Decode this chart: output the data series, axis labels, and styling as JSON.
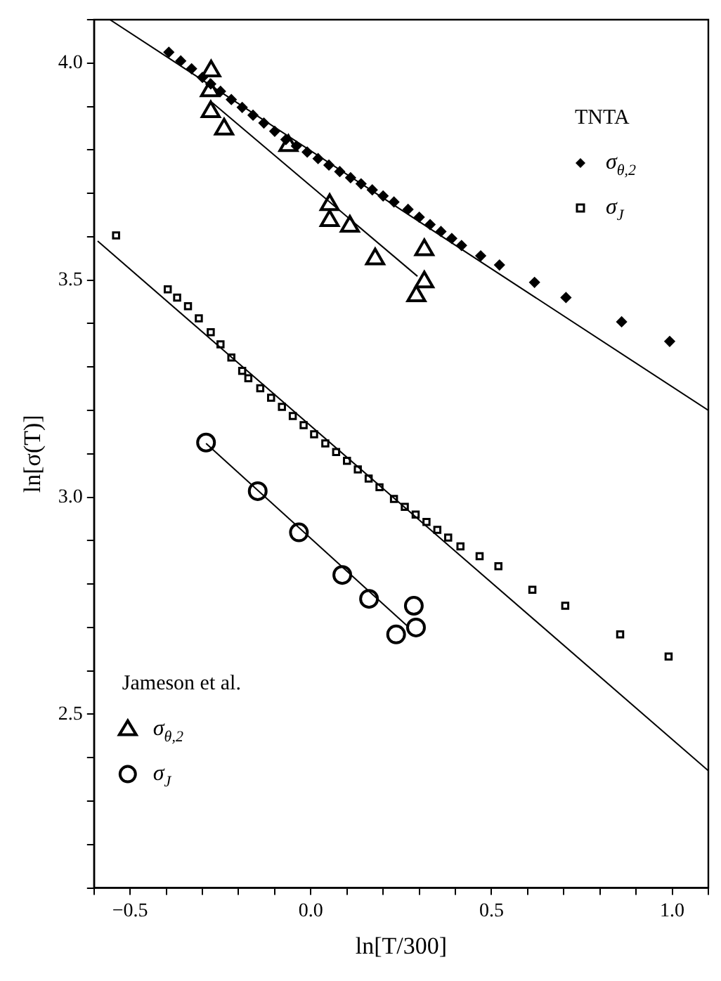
{
  "chart_data": {
    "type": "scatter",
    "xlabel": "ln[T/300]",
    "ylabel": "ln[σ(T)]",
    "xlim": [
      -0.6,
      1.1
    ],
    "ylim": [
      2.1,
      4.1
    ],
    "xticks": [
      {
        "value": -0.6,
        "label": null
      },
      -0.5,
      {
        "value": -0.4,
        "label": null
      },
      {
        "value": -0.3,
        "label": null
      },
      {
        "value": -0.2,
        "label": null
      },
      {
        "value": -0.1,
        "label": null
      },
      {
        "value": 0,
        "label": "0.0"
      },
      {
        "value": 0.1,
        "label": null
      },
      {
        "value": 0.2,
        "label": null
      },
      {
        "value": 0.3,
        "label": null
      },
      {
        "value": 0.4,
        "label": null
      },
      0.5,
      {
        "value": 0.6,
        "label": null
      },
      {
        "value": 0.7,
        "label": null
      },
      {
        "value": 0.8,
        "label": null
      },
      {
        "value": 0.9,
        "label": null
      },
      {
        "value": 1,
        "label": "1.0"
      },
      {
        "value": 1.1,
        "label": null
      }
    ],
    "yticks": [
      {
        "value": 2.1,
        "label": null
      },
      {
        "value": 2.2,
        "label": null
      },
      {
        "value": 2.3,
        "label": null
      },
      {
        "value": 2.4,
        "label": null
      },
      2.5,
      {
        "value": 2.6,
        "label": null
      },
      {
        "value": 2.7,
        "label": null
      },
      {
        "value": 2.8,
        "label": null
      },
      {
        "value": 2.9,
        "label": null
      },
      {
        "value": 3,
        "label": "3.0"
      },
      {
        "value": 3.1,
        "label": null
      },
      {
        "value": 3.2,
        "label": null
      },
      {
        "value": 3.3,
        "label": null
      },
      {
        "value": 3.4,
        "label": null
      },
      3.5,
      {
        "value": 3.6,
        "label": null
      },
      {
        "value": 3.7,
        "label": null
      },
      {
        "value": 3.8,
        "label": null
      },
      {
        "value": 3.9,
        "label": null
      },
      {
        "value": 4,
        "label": "4.0"
      },
      {
        "value": 4.1,
        "label": null
      }
    ],
    "grid": false,
    "legend": "bottom left",
    "annotations": [
      "TNTA",
      "Jameson et al."
    ],
    "series": [
      {
        "name": "σ$_{θ,2}$",
        "type": "scatter",
        "marker": "diamond",
        "color": "#000000",
        "x": [
          -0.393,
          -0.36,
          -0.33,
          -0.3,
          -0.277,
          -0.25,
          -0.22,
          -0.19,
          -0.16,
          -0.13,
          -0.1,
          -0.069,
          -0.04,
          -0.01,
          0.02,
          0.05,
          0.08,
          0.11,
          0.139,
          0.17,
          0.2,
          0.23,
          0.269,
          0.3,
          0.33,
          0.36,
          0.39,
          0.417,
          0.47,
          0.522,
          0.619,
          0.706,
          0.86,
          0.993
        ],
        "values": [
          4.025,
          4.005,
          3.987,
          3.967,
          3.952,
          3.935,
          3.916,
          3.898,
          3.88,
          3.862,
          3.843,
          3.824,
          3.809,
          3.795,
          3.78,
          3.765,
          3.75,
          3.736,
          3.722,
          3.708,
          3.694,
          3.68,
          3.663,
          3.645,
          3.628,
          3.612,
          3.596,
          3.58,
          3.556,
          3.535,
          3.495,
          3.46,
          3.404,
          3.359
        ]
      },
      {
        "name": "σ$_{J}$",
        "type": "scatter",
        "marker": "square",
        "color": "#000000",
        "x": [
          -0.539,
          -0.396,
          -0.37,
          -0.34,
          -0.31,
          -0.277,
          -0.25,
          -0.22,
          -0.19,
          -0.173,
          -0.14,
          -0.11,
          -0.08,
          -0.05,
          -0.02,
          0.009,
          0.04,
          0.07,
          0.1,
          0.13,
          0.16,
          0.19,
          0.23,
          0.26,
          0.29,
          0.32,
          0.35,
          0.38,
          0.414,
          0.467,
          0.519,
          0.613,
          0.704,
          0.856,
          0.99
        ],
        "values": [
          3.603,
          3.479,
          3.46,
          3.44,
          3.412,
          3.38,
          3.352,
          3.322,
          3.291,
          3.274,
          3.251,
          3.229,
          3.208,
          3.187,
          3.166,
          3.145,
          3.124,
          3.104,
          3.084,
          3.064,
          3.043,
          3.023,
          2.996,
          2.978,
          2.96,
          2.943,
          2.925,
          2.907,
          2.887,
          2.864,
          2.841,
          2.787,
          2.75,
          2.684,
          2.633
        ]
      },
      {
        "name": "σ$_{θ,2}$",
        "type": "scatter",
        "marker": "triangle",
        "color": "#000000",
        "x": [
          -0.276,
          -0.279,
          -0.277,
          -0.24,
          -0.062,
          0.052,
          0.052,
          0.108,
          0.178,
          0.314,
          0.314,
          0.292
        ],
        "values": [
          3.982,
          3.936,
          3.888,
          3.848,
          3.81,
          3.674,
          3.637,
          3.624,
          3.549,
          3.57,
          3.496,
          3.464
        ]
      },
      {
        "name": "σ$_{J}$",
        "type": "scatter",
        "marker": "circle",
        "color": "#000000",
        "x": [
          -0.29,
          -0.147,
          -0.033,
          0.087,
          0.161,
          0.285,
          0.291,
          0.236
        ],
        "values": [
          3.126,
          3.014,
          2.919,
          2.821,
          2.766,
          2.75,
          2.7,
          2.684
        ]
      },
      {
        "type": "line",
        "marker": "none",
        "color": "#000000",
        "x": [
          -0.556,
          1.1
        ],
        "values": [
          4.1,
          3.2
        ]
      },
      {
        "type": "line",
        "marker": "none",
        "color": "#000000",
        "x": [
          -0.59,
          1.1
        ],
        "values": [
          3.59,
          2.37
        ]
      },
      {
        "type": "line",
        "marker": "none",
        "color": "#000000",
        "x": [
          -0.273,
          0.295
        ],
        "values": [
          3.909,
          3.509
        ]
      },
      {
        "type": "line",
        "marker": "none",
        "color": "#000000",
        "x": [
          -0.29,
          0.269
        ],
        "values": [
          3.124,
          2.702
        ]
      }
    ]
  }
}
